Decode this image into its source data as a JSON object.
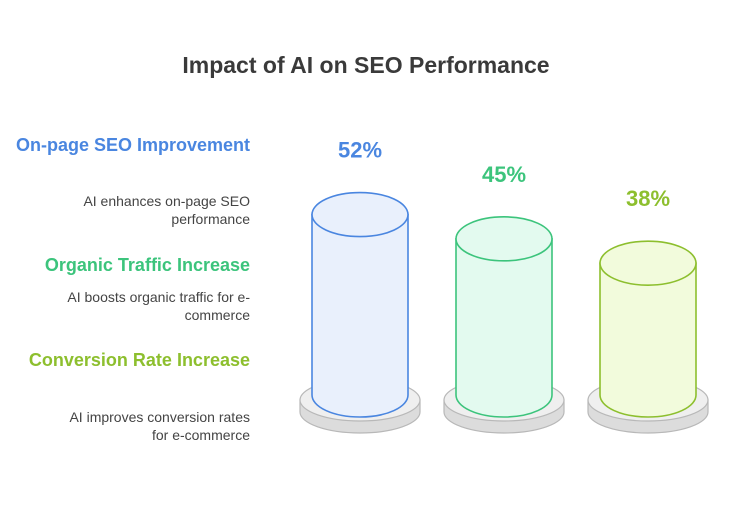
{
  "chart_data": {
    "type": "bar",
    "title": "Impact of AI on SEO Performance",
    "categories": [
      "On-page SEO Improvement",
      "Organic Traffic Increase",
      "Conversion Rate Increase"
    ],
    "descriptions": [
      "AI enhances on-page SEO performance",
      "AI boosts organic traffic for e-commerce",
      "AI improves conversion rates for e-commerce"
    ],
    "values": [
      52,
      45,
      38
    ],
    "value_labels": [
      "52%",
      "45%",
      "38%"
    ],
    "colors": [
      "#4a86e0",
      "#3cc47c",
      "#8dbf2e"
    ]
  }
}
